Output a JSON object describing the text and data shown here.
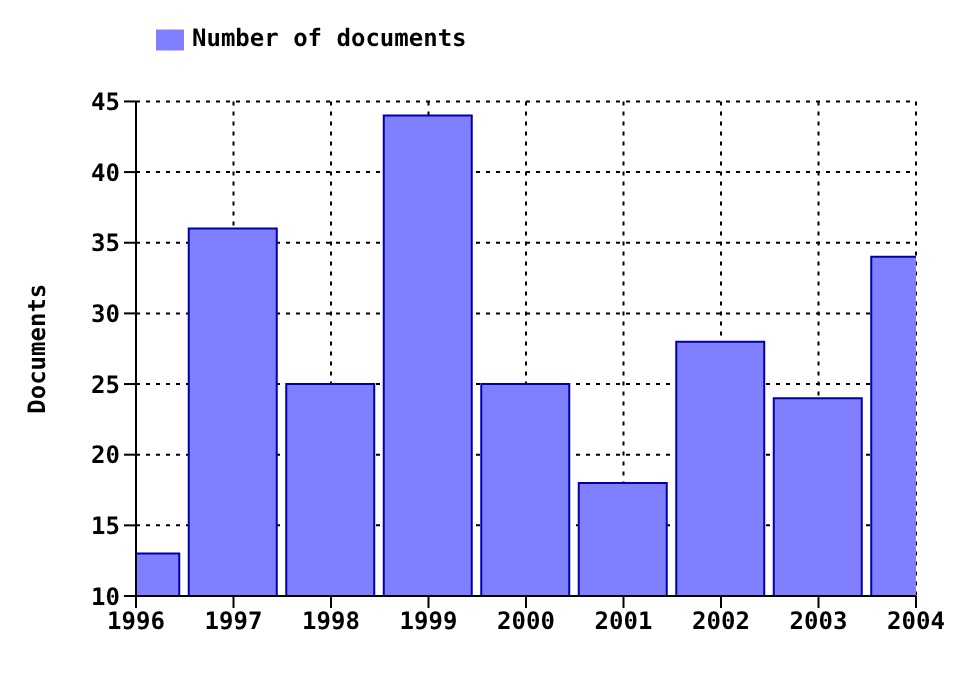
{
  "chart_data": {
    "type": "bar",
    "ylabel": "Documents",
    "x": [
      1996,
      1997,
      1998,
      1999,
      2000,
      2001,
      2002,
      2003,
      2004
    ],
    "series": [
      {
        "name": "Number of documents",
        "color": "#8080ff",
        "values": [
          13,
          36,
          25,
          44,
          25,
          18,
          28,
          24,
          34
        ]
      }
    ],
    "xlim": [
      1996,
      2004
    ],
    "xticks": [
      1996,
      1997,
      1998,
      1999,
      2000,
      2001,
      2002,
      2003,
      2004
    ],
    "ylim": [
      10,
      45
    ],
    "yticks": [
      10,
      15,
      20,
      25,
      30,
      35,
      40,
      45
    ],
    "grid": true,
    "legend": "top left"
  }
}
